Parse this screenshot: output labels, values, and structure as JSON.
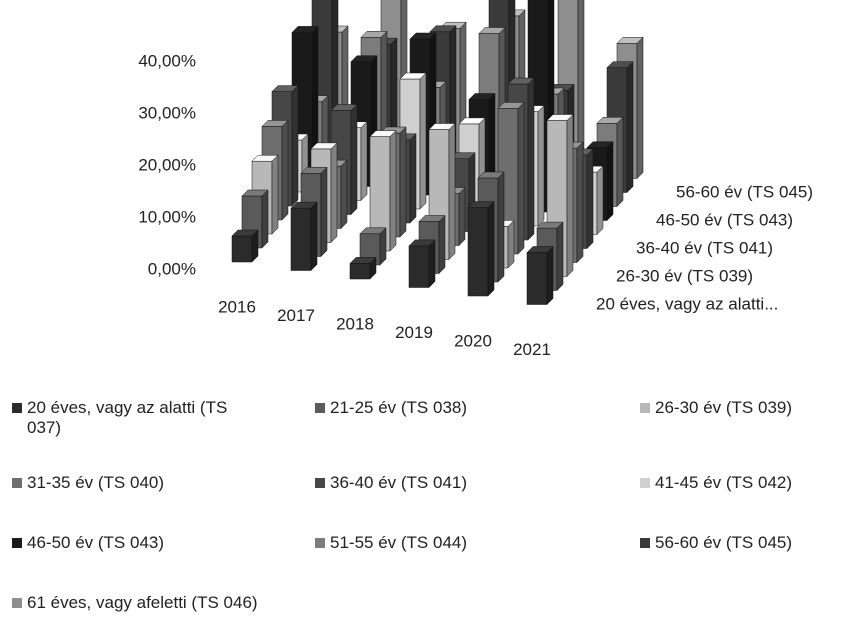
{
  "chart_data": {
    "type": "bar3d",
    "categories": [
      "2016",
      "2017",
      "2018",
      "2019",
      "2020",
      "2021"
    ],
    "ylim": [
      0,
      40
    ],
    "yticks": [
      {
        "value": 0,
        "label": "0,00%"
      },
      {
        "value": 10,
        "label": "10,00%"
      },
      {
        "value": 20,
        "label": "20,00%"
      },
      {
        "value": 30,
        "label": "30,00%"
      },
      {
        "value": 40,
        "label": "40,00%"
      }
    ],
    "depth_labels": [
      "20 éves, vagy az alatti...",
      null,
      "26-30 év (TS 039)",
      null,
      "36-40 év (TS 041)",
      null,
      "46-50 év (TS 043)",
      null,
      "56-60 év (TS 045)",
      null
    ],
    "series": [
      {
        "name": "20 éves, vagy az alatti (TS 037)",
        "color": "#2b2b2b",
        "values": [
          5,
          12,
          3,
          8,
          17,
          10
        ]
      },
      {
        "name": "21-25 év (TS 038)",
        "color": "#5a5a5a",
        "values": [
          10,
          16,
          6,
          10,
          20,
          12
        ]
      },
      {
        "name": "26-30 év (TS 039)",
        "color": "#b8b8b8",
        "values": [
          14,
          18,
          22,
          25,
          8,
          30
        ]
      },
      {
        "name": "31-35 év (TS 040)",
        "color": "#6e6e6e",
        "values": [
          18,
          12,
          20,
          10,
          28,
          22
        ]
      },
      {
        "name": "36-40 év (TS 041)",
        "color": "#474747",
        "values": [
          22,
          20,
          16,
          14,
          30,
          18
        ]
      },
      {
        "name": "41-45 év (TS 042)",
        "color": "#cfcfcf",
        "values": [
          10,
          14,
          25,
          18,
          22,
          12
        ]
      },
      {
        "name": "46-50 év (TS 043)",
        "color": "#1a1a1a",
        "values": [
          28,
          24,
          30,
          20,
          45,
          14
        ]
      },
      {
        "name": "51-55 év (TS 044)",
        "color": "#7c7c7c",
        "values": [
          12,
          26,
          18,
          30,
          20,
          16
        ]
      },
      {
        "name": "56-60 év (TS 045)",
        "color": "#3a3a3a",
        "values": [
          34,
          22,
          26,
          50,
          18,
          24
        ]
      },
      {
        "name": "61 éves, vagy afeletti (TS 046)",
        "color": "#8e8e8e",
        "values": [
          20,
          30,
          24,
          28,
          52,
          26
        ]
      }
    ],
    "legend": "bottom"
  }
}
